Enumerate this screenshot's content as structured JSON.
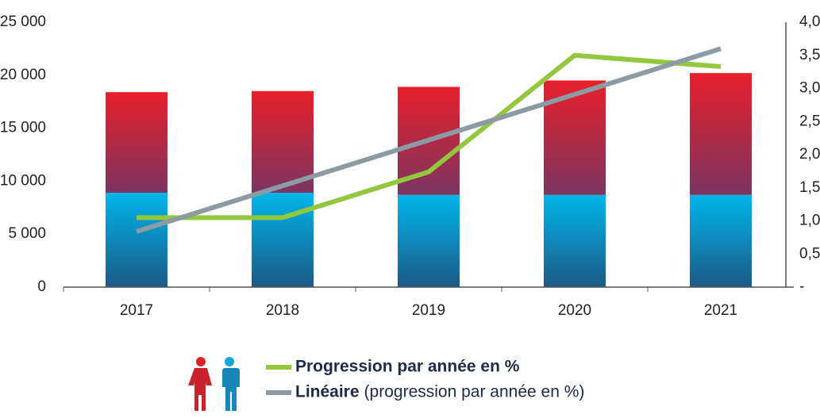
{
  "chart_data": {
    "type": "bar",
    "categories": [
      "2017",
      "2018",
      "2019",
      "2020",
      "2021"
    ],
    "stacked": true,
    "series": [
      {
        "gradient": [
          "#00b6ea",
          "#1c5a86"
        ],
        "values": [
          8900,
          8900,
          8700,
          8700,
          8700
        ]
      },
      {
        "gradient": [
          "#e8202a",
          "#7c3562"
        ],
        "values": [
          9500,
          9600,
          10200,
          10800,
          11500
        ]
      },
      {
        "name": "Progression par année en %",
        "type": "line",
        "axis": "y2",
        "color": "#93c83e",
        "values": [
          1.05,
          1.05,
          1.74,
          3.5,
          3.33
        ]
      },
      {
        "name": "Linéaire",
        "detail": "(progression par année en %)",
        "type": "line",
        "axis": "y2",
        "color": "#8c9aa3",
        "values": [
          0.84,
          1.53,
          2.22,
          2.91,
          3.6
        ]
      }
    ],
    "ylim": [
      0,
      25000
    ],
    "yticks": [
      0,
      {
        "value": 5000,
        "label": "5 000"
      },
      {
        "value": 10000,
        "label": "10 000"
      },
      {
        "value": 15000,
        "label": "15 000"
      },
      {
        "value": 20000,
        "label": "20 000"
      },
      {
        "value": 25000,
        "label": "25 000"
      }
    ],
    "y2lim": [
      0,
      4
    ],
    "y2ticks": [
      {
        "value": 0,
        "label": "-"
      },
      {
        "value": 0.5,
        "label": "0,5"
      },
      {
        "value": 1,
        "label": "1,0"
      },
      {
        "value": 1.5,
        "label": "1,5"
      },
      {
        "value": 2,
        "label": "2,0"
      },
      {
        "value": 2.5,
        "label": "2,5"
      },
      {
        "value": 3,
        "label": "3,0"
      },
      {
        "value": 3.5,
        "label": "3,5"
      },
      {
        "value": 4,
        "label": "4,0"
      }
    ]
  }
}
